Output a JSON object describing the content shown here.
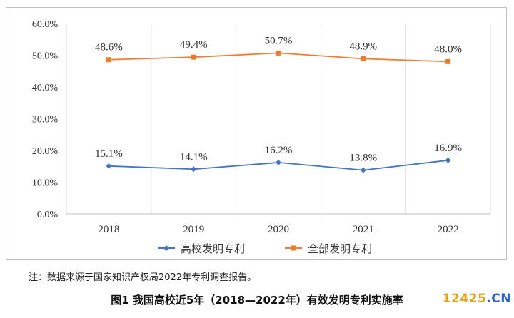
{
  "chart_data": {
    "type": "line",
    "categories": [
      "2018",
      "2019",
      "2020",
      "2021",
      "2022"
    ],
    "ylim": [
      0,
      60
    ],
    "yticks": [
      "0.0%",
      "10.0%",
      "20.0%",
      "30.0%",
      "40.0%",
      "50.0%",
      "60.0%"
    ],
    "series": [
      {
        "name": "高校发明专利",
        "values": [
          15.1,
          14.1,
          16.2,
          13.8,
          16.9
        ],
        "labels": [
          "15.1%",
          "14.1%",
          "16.2%",
          "13.8%",
          "16.9%"
        ],
        "color": "#4472c4",
        "marker": "diamond"
      },
      {
        "name": "全部发明专利",
        "values": [
          48.6,
          49.4,
          50.7,
          48.9,
          48.0
        ],
        "labels": [
          "48.6%",
          "49.4%",
          "50.7%",
          "48.9%",
          "48.0%"
        ],
        "color": "#ed7d31",
        "marker": "square"
      }
    ],
    "grid": "vertical",
    "legend": "bottom"
  },
  "note": "注：数据来源于国家知识产权局2022年专利调查报告。",
  "caption": "图1 我国高校近5年（2018—2022年）有效发明专利实施率",
  "watermark": {
    "num": "12425",
    "dot": ".",
    "cn": "CN"
  }
}
